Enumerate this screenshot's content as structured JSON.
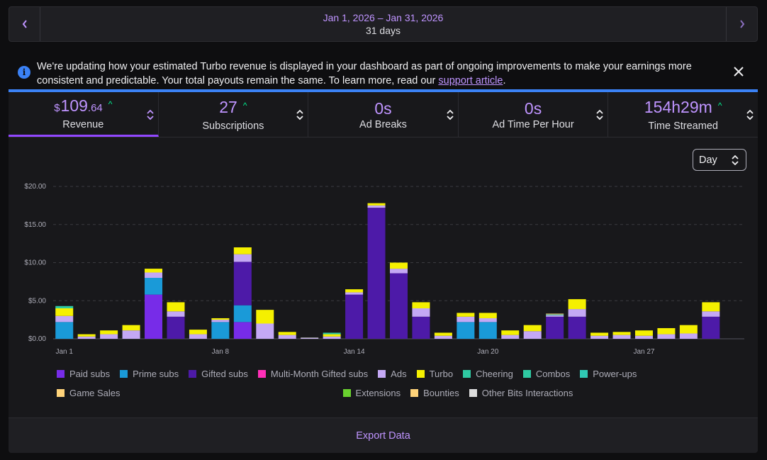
{
  "date_bar": {
    "prev_icon": "chevron-left-icon",
    "next_icon": "chevron-right-icon",
    "range": "Jan 1, 2026 – Jan 31, 2026",
    "days": "31 days"
  },
  "notice": {
    "text_before": "We're updating how your estimated Turbo revenue is displayed in your dashboard as part of ongoing improvements to make your earnings more consistent and predictable. Your total payouts remain the same. To learn more, read our ",
    "link": "support article",
    "text_after": ".",
    "info_icon": "info-icon",
    "close_icon": "close-icon"
  },
  "metrics": [
    {
      "currency": "$",
      "value": "109",
      "cents": ".64",
      "label": "Revenue",
      "trend": "^"
    },
    {
      "value": "27",
      "label": "Subscriptions",
      "trend": "^"
    },
    {
      "value": "0s",
      "label": "Ad Breaks"
    },
    {
      "value": "0s",
      "label": "Ad Time Per Hour"
    },
    {
      "value": "154h29m",
      "label": "Time Streamed",
      "trend": "^"
    }
  ],
  "granularity": {
    "selected": "Day"
  },
  "colors": {
    "paid": "#772ce8",
    "prime": "#1a9ad8",
    "gifted": "#4d1aa8",
    "multi": "#ff2fb8",
    "ads": "#c4a8f5",
    "turbo": "#f5f000",
    "cheering": "#2fc9a2",
    "combos": "#2fc9a2",
    "powerups": "#30c9b4",
    "games": "#ffd37a",
    "extensions": "#6ad12f",
    "bounties": "#ffd37a",
    "other": "#dddddd"
  },
  "chart_data": {
    "type": "bar",
    "stacked": true,
    "ylim": [
      0,
      20
    ],
    "yticks": [
      "$0.00",
      "$5.00",
      "$10.00",
      "$15.00",
      "$20.00"
    ],
    "xtick_labels": [
      {
        "index": 0,
        "label": "Jan 1"
      },
      {
        "index": 7,
        "label": "Jan 8"
      },
      {
        "index": 13,
        "label": "Jan 14"
      },
      {
        "index": 19,
        "label": "Jan 20"
      },
      {
        "index": 26,
        "label": "Jan 27"
      }
    ],
    "categories": [
      "Jan 1",
      "Jan 2",
      "Jan 3",
      "Jan 4",
      "Jan 5",
      "Jan 6",
      "Jan 7",
      "Jan 8",
      "Jan 9",
      "Jan 10",
      "Jan 11",
      "Jan 12",
      "Jan 13",
      "Jan 14",
      "Jan 15",
      "Jan 16",
      "Jan 17",
      "Jan 18",
      "Jan 19",
      "Jan 20",
      "Jan 21",
      "Jan 22",
      "Jan 23",
      "Jan 24",
      "Jan 25",
      "Jan 26",
      "Jan 27",
      "Jan 28",
      "Jan 29",
      "Jan 30",
      "Jan 31"
    ],
    "series": [
      {
        "name": "Paid subs",
        "key": "paid",
        "values": [
          0,
          0,
          0,
          0,
          5.8,
          0,
          0,
          0,
          2.2,
          0,
          0,
          0,
          0,
          0,
          0,
          0,
          0,
          0,
          0,
          0,
          0,
          0,
          0,
          0,
          0,
          0,
          0,
          0,
          0,
          0,
          0
        ]
      },
      {
        "name": "Prime subs",
        "key": "prime",
        "values": [
          2.2,
          0,
          0,
          0,
          2.2,
          0,
          0,
          2.2,
          2.2,
          0,
          0,
          0,
          0,
          0,
          0,
          0,
          0,
          0,
          2.2,
          2.2,
          0,
          0,
          0,
          0,
          0,
          0,
          0,
          0,
          0,
          0,
          0
        ]
      },
      {
        "name": "Gifted subs",
        "key": "gifted",
        "values": [
          0,
          0,
          0,
          0,
          0,
          2.9,
          0,
          0,
          5.7,
          0,
          0,
          0,
          0,
          5.8,
          17.2,
          8.6,
          2.9,
          0,
          0,
          0,
          0,
          0,
          2.9,
          2.9,
          0,
          0,
          0,
          0,
          0,
          2.9,
          0
        ]
      },
      {
        "name": "Multi-Month Gifted subs",
        "key": "multi",
        "values": [
          0,
          0,
          0,
          0,
          0,
          0,
          0,
          0,
          0,
          0,
          0,
          0,
          0,
          0,
          0,
          0,
          0,
          0,
          0,
          0,
          0,
          0,
          0,
          0,
          0,
          0,
          0,
          0,
          0,
          0,
          0
        ]
      },
      {
        "name": "Ads",
        "key": "ads",
        "values": [
          0.8,
          0.3,
          0.6,
          1.1,
          0.7,
          0.7,
          0.6,
          0.3,
          1.0,
          2.0,
          0.5,
          0.1,
          0.3,
          0.3,
          0.3,
          0.6,
          1.1,
          0.4,
          0.7,
          0.5,
          0.5,
          1.0,
          0.2,
          1.0,
          0.4,
          0.5,
          0.4,
          0.6,
          0.7,
          0.7,
          0
        ]
      },
      {
        "name": "Turbo",
        "key": "turbo",
        "values": [
          1.0,
          0.3,
          0.5,
          0.7,
          0.5,
          1.2,
          0.6,
          0.2,
          0.9,
          1.8,
          0.4,
          0,
          0.3,
          0.4,
          0.3,
          0.8,
          0.8,
          0.4,
          0.5,
          0.7,
          0.6,
          0.8,
          0,
          1.3,
          0.4,
          0.4,
          0.7,
          0.8,
          1.1,
          1.2,
          0
        ]
      },
      {
        "name": "Cheering",
        "key": "cheering",
        "values": [
          0.3,
          0,
          0,
          0,
          0,
          0,
          0,
          0,
          0,
          0,
          0,
          0,
          0.2,
          0,
          0,
          0,
          0,
          0,
          0,
          0,
          0,
          0,
          0.1,
          0,
          0,
          0,
          0,
          0,
          0,
          0,
          0
        ]
      },
      {
        "name": "Combos",
        "key": "combos",
        "values": [
          0,
          0,
          0,
          0,
          0,
          0,
          0,
          0,
          0,
          0,
          0,
          0,
          0,
          0,
          0,
          0,
          0,
          0,
          0,
          0,
          0,
          0,
          0,
          0,
          0,
          0,
          0,
          0,
          0,
          0,
          0
        ]
      },
      {
        "name": "Power-ups",
        "key": "powerups",
        "values": [
          0,
          0,
          0,
          0,
          0,
          0,
          0,
          0,
          0,
          0,
          0,
          0,
          0,
          0,
          0,
          0,
          0,
          0,
          0,
          0,
          0,
          0,
          0,
          0,
          0,
          0,
          0,
          0,
          0,
          0,
          0
        ]
      },
      {
        "name": "Game Sales",
        "key": "games",
        "values": [
          0,
          0,
          0,
          0,
          0,
          0,
          0,
          0,
          0,
          0,
          0,
          0,
          0,
          0,
          0,
          0,
          0,
          0,
          0,
          0,
          0,
          0,
          0.1,
          0,
          0,
          0,
          0,
          0,
          0,
          0,
          0
        ]
      },
      {
        "name": "Extensions",
        "key": "extensions",
        "values": [
          0,
          0,
          0,
          0,
          0,
          0,
          0,
          0,
          0,
          0,
          0,
          0,
          0,
          0,
          0,
          0,
          0,
          0,
          0,
          0,
          0,
          0,
          0,
          0,
          0,
          0,
          0,
          0,
          0,
          0,
          0
        ]
      },
      {
        "name": "Bounties",
        "key": "bounties",
        "values": [
          0,
          0,
          0,
          0,
          0,
          0,
          0,
          0,
          0,
          0,
          0,
          0,
          0,
          0,
          0,
          0,
          0,
          0,
          0,
          0,
          0,
          0,
          0,
          0,
          0,
          0,
          0,
          0,
          0,
          0,
          0
        ]
      },
      {
        "name": "Other Bits Interactions",
        "key": "other",
        "values": [
          0,
          0,
          0,
          0,
          0,
          0,
          0,
          0,
          0,
          0,
          0,
          0.05,
          0,
          0,
          0,
          0,
          0,
          0,
          0,
          0,
          0,
          0,
          0,
          0,
          0,
          0,
          0,
          0,
          0,
          0,
          0
        ]
      }
    ]
  },
  "export": {
    "label": "Export Data"
  }
}
